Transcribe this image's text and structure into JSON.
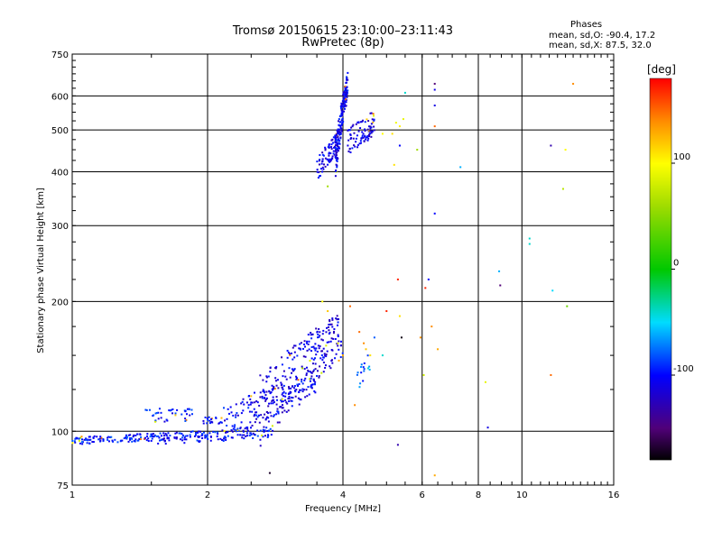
{
  "header": {
    "title_line1": "Tromsø 20150615 23:10:00–23:11:43",
    "title_line2": "RwPretec (8p)"
  },
  "phases_panel": {
    "heading": "Phases",
    "line_o": "mean, sd,O: -90.4, 17.2",
    "line_x": "mean, sd,X:  87.5, 32.0"
  },
  "chart_data": {
    "type": "scatter",
    "title": "Tromsø 20150615 23:10:00–23:11:43",
    "subtitle": "RwPretec (8p)",
    "xlabel": "Frequency [MHz]",
    "ylabel": "Stationary phase Virtual Height [km]",
    "x_scale": "log",
    "y_scale": "log",
    "xlim": [
      1,
      16
    ],
    "ylim": [
      75,
      750
    ],
    "x_ticks": [
      1,
      2,
      4,
      6,
      8,
      10,
      16
    ],
    "y_ticks": [
      75,
      100,
      200,
      300,
      400,
      500,
      600,
      750
    ],
    "x_gridlines": [
      2,
      4,
      6,
      8,
      10
    ],
    "y_gridlines": [
      100,
      200,
      300,
      400,
      500,
      600
    ],
    "grid": true,
    "colorbar": {
      "label": "[deg]",
      "range": [
        -180,
        180
      ],
      "ticks": [
        100,
        0,
        -100
      ],
      "colormap": "rainbow"
    },
    "traces": [
      {
        "x0": 1.0,
        "x1": 1.55,
        "y0": 95,
        "y1": 97,
        "yspread": 2,
        "phase": -95,
        "n": 110
      },
      {
        "x0": 1.55,
        "x1": 2.8,
        "y0": 96,
        "y1": 100,
        "yspread": 3,
        "phase": -100,
        "n": 150
      },
      {
        "x0": 1.45,
        "x1": 1.85,
        "y0": 109,
        "y1": 109,
        "yspread": 4,
        "phase": -95,
        "n": 40
      },
      {
        "x0": 1.95,
        "x1": 2.15,
        "y0": 106,
        "y1": 106,
        "yspread": 2,
        "phase": -100,
        "n": 20
      },
      {
        "x0": 2.15,
        "x1": 3.5,
        "y0": 104,
        "y1": 130,
        "yspread": 10,
        "phase": -105,
        "n": 160
      },
      {
        "x0": 2.6,
        "x1": 4.0,
        "y0": 112,
        "y1": 170,
        "yspread": 22,
        "phase": -110,
        "n": 260
      },
      {
        "x0": 3.5,
        "x1": 3.9,
        "y0": 405,
        "y1": 470,
        "yspread": 25,
        "phase": -110,
        "n": 80
      },
      {
        "x0": 3.85,
        "x1": 4.1,
        "y0": 430,
        "y1": 640,
        "yspread": 45,
        "phase": -105,
        "n": 170
      },
      {
        "x0": 4.1,
        "x1": 4.7,
        "y0": 470,
        "y1": 520,
        "yspread": 35,
        "phase": -110,
        "n": 90
      },
      {
        "x0": 4.3,
        "x1": 4.6,
        "y0": 130,
        "y1": 145,
        "yspread": 8,
        "phase": -80,
        "n": 15
      }
    ],
    "scattered_points": [
      {
        "x": 3.05,
        "y": 150,
        "phase": 140
      },
      {
        "x": 3.25,
        "y": 140,
        "phase": 60
      },
      {
        "x": 3.6,
        "y": 200,
        "phase": 100
      },
      {
        "x": 3.7,
        "y": 190,
        "phase": 120
      },
      {
        "x": 3.9,
        "y": 160,
        "phase": 100
      },
      {
        "x": 4.0,
        "y": 150,
        "phase": 130
      },
      {
        "x": 4.15,
        "y": 195,
        "phase": 150
      },
      {
        "x": 4.35,
        "y": 170,
        "phase": 150
      },
      {
        "x": 4.45,
        "y": 160,
        "phase": 140
      },
      {
        "x": 4.5,
        "y": 155,
        "phase": 120
      },
      {
        "x": 4.6,
        "y": 150,
        "phase": 110
      },
      {
        "x": 4.25,
        "y": 115,
        "phase": 140
      },
      {
        "x": 4.55,
        "y": 140,
        "phase": -40
      },
      {
        "x": 4.7,
        "y": 165,
        "phase": -80
      },
      {
        "x": 5.0,
        "y": 190,
        "phase": 170
      },
      {
        "x": 4.9,
        "y": 150,
        "phase": -40
      },
      {
        "x": 3.7,
        "y": 370,
        "phase": 60
      },
      {
        "x": 4.9,
        "y": 490,
        "phase": 100
      },
      {
        "x": 5.15,
        "y": 490,
        "phase": 110
      },
      {
        "x": 5.25,
        "y": 520,
        "phase": 95
      },
      {
        "x": 5.35,
        "y": 510,
        "phase": 105
      },
      {
        "x": 5.45,
        "y": 530,
        "phase": 90
      },
      {
        "x": 5.2,
        "y": 415,
        "phase": 110
      },
      {
        "x": 5.35,
        "y": 460,
        "phase": -100
      },
      {
        "x": 5.5,
        "y": 610,
        "phase": -40
      },
      {
        "x": 5.85,
        "y": 450,
        "phase": 60
      },
      {
        "x": 6.4,
        "y": 640,
        "phase": -150
      },
      {
        "x": 6.4,
        "y": 620,
        "phase": -110
      },
      {
        "x": 6.4,
        "y": 570,
        "phase": -110
      },
      {
        "x": 6.4,
        "y": 510,
        "phase": 150
      },
      {
        "x": 6.4,
        "y": 320,
        "phase": -100
      },
      {
        "x": 6.3,
        "y": 175,
        "phase": 140
      },
      {
        "x": 6.2,
        "y": 225,
        "phase": -100
      },
      {
        "x": 6.1,
        "y": 215,
        "phase": 170
      },
      {
        "x": 5.3,
        "y": 225,
        "phase": 170
      },
      {
        "x": 5.35,
        "y": 185,
        "phase": 110
      },
      {
        "x": 5.4,
        "y": 165,
        "phase": -175
      },
      {
        "x": 5.95,
        "y": 165,
        "phase": 140
      },
      {
        "x": 6.05,
        "y": 135,
        "phase": 80
      },
      {
        "x": 6.5,
        "y": 155,
        "phase": 130
      },
      {
        "x": 5.3,
        "y": 93,
        "phase": -130
      },
      {
        "x": 6.4,
        "y": 79,
        "phase": 130
      },
      {
        "x": 7.3,
        "y": 410,
        "phase": -60
      },
      {
        "x": 8.3,
        "y": 130,
        "phase": 90
      },
      {
        "x": 8.4,
        "y": 102,
        "phase": -110
      },
      {
        "x": 8.9,
        "y": 235,
        "phase": -60
      },
      {
        "x": 8.95,
        "y": 218,
        "phase": -150
      },
      {
        "x": 10.4,
        "y": 280,
        "phase": -40
      },
      {
        "x": 10.4,
        "y": 272,
        "phase": -40
      },
      {
        "x": 11.6,
        "y": 460,
        "phase": -130
      },
      {
        "x": 11.7,
        "y": 212,
        "phase": -50
      },
      {
        "x": 11.6,
        "y": 135,
        "phase": 150
      },
      {
        "x": 12.5,
        "y": 450,
        "phase": 100
      },
      {
        "x": 12.35,
        "y": 365,
        "phase": 70
      },
      {
        "x": 12.6,
        "y": 195,
        "phase": 40
      },
      {
        "x": 13.0,
        "y": 640,
        "phase": 140
      },
      {
        "x": 2.75,
        "y": 80,
        "phase": -170
      }
    ]
  }
}
